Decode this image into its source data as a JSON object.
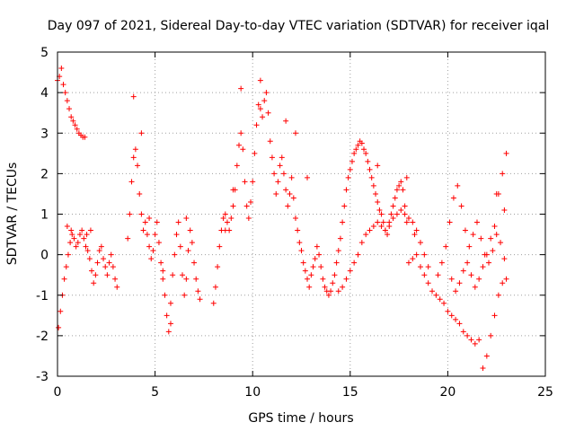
{
  "chart_data": {
    "type": "scatter",
    "title": "Day 097 of 2021, Sidereal Day-to-day VTEC variation (SDTVAR) for receiver iqal",
    "xlabel": "GPS time / hours",
    "ylabel": "SDTVAR / TECUs",
    "xlim": [
      0,
      25
    ],
    "ylim": [
      -3,
      5
    ],
    "x_ticks": [
      0,
      5,
      10,
      15,
      20,
      25
    ],
    "y_ticks": [
      -3,
      -2,
      -1,
      0,
      1,
      2,
      3,
      4,
      5
    ],
    "grid": true,
    "marker": "plus",
    "color": "#ff0000",
    "series": [
      {
        "name": "SDTVAR",
        "x": [
          0.0,
          0.1,
          0.2,
          0.3,
          0.4,
          0.5,
          0.6,
          0.7,
          0.8,
          0.9,
          1.0,
          1.1,
          1.2,
          1.3,
          1.4,
          0.05,
          0.15,
          0.25,
          0.35,
          0.45,
          0.55,
          0.65,
          0.75,
          0.85,
          0.95,
          1.05,
          1.15,
          1.25,
          1.35,
          1.45,
          1.55,
          1.65,
          1.75,
          1.85,
          1.95,
          2.05,
          2.15,
          2.25,
          2.35,
          2.45,
          2.55,
          2.65,
          2.75,
          2.85,
          2.95,
          3.05,
          3.6,
          3.7,
          3.8,
          3.9,
          4.0,
          4.1,
          4.2,
          4.3,
          4.4,
          4.5,
          4.6,
          4.7,
          4.8,
          4.9,
          5.0,
          5.1,
          5.2,
          5.3,
          5.4,
          5.5,
          5.6,
          5.7,
          5.8,
          5.9,
          6.0,
          6.1,
          6.2,
          6.3,
          6.4,
          6.5,
          6.6,
          6.7,
          6.8,
          6.9,
          7.0,
          7.1,
          7.2,
          7.3,
          8.0,
          8.1,
          8.2,
          8.3,
          8.4,
          8.5,
          8.6,
          8.7,
          8.8,
          8.9,
          9.0,
          9.1,
          9.2,
          9.3,
          9.4,
          9.5,
          9.6,
          9.7,
          9.8,
          9.9,
          10.0,
          10.1,
          10.2,
          10.3,
          10.4,
          10.5,
          10.6,
          10.7,
          10.8,
          10.9,
          11.0,
          11.1,
          11.2,
          11.3,
          11.4,
          11.5,
          11.6,
          11.7,
          11.8,
          11.9,
          12.0,
          12.1,
          12.2,
          12.3,
          12.4,
          12.5,
          12.6,
          12.7,
          12.8,
          12.9,
          13.0,
          13.1,
          13.2,
          13.3,
          13.4,
          13.5,
          13.6,
          13.7,
          13.8,
          13.9,
          14.0,
          14.1,
          14.2,
          14.3,
          14.4,
          14.5,
          14.6,
          14.7,
          14.8,
          14.9,
          15.0,
          15.1,
          15.2,
          15.3,
          15.4,
          15.5,
          15.6,
          15.7,
          15.8,
          15.9,
          16.0,
          16.1,
          16.2,
          16.3,
          16.4,
          16.5,
          16.6,
          16.7,
          16.8,
          16.9,
          17.0,
          17.1,
          17.2,
          17.3,
          17.4,
          17.5,
          17.6,
          17.7,
          17.8,
          17.9,
          14.4,
          14.6,
          14.8,
          15.0,
          15.2,
          15.4,
          15.6,
          15.8,
          16.0,
          16.2,
          16.4,
          16.6,
          16.8,
          17.0,
          17.2,
          17.4,
          17.6,
          17.8,
          18.0,
          18.2,
          18.4,
          18.6,
          18.8,
          19.0,
          18.0,
          18.2,
          18.4,
          18.6,
          18.8,
          19.0,
          19.2,
          19.4,
          19.6,
          19.8,
          20.0,
          20.2,
          20.4,
          20.6,
          20.8,
          21.0,
          21.2,
          21.4,
          21.6,
          21.8,
          22.0,
          22.2,
          22.4,
          22.6,
          22.8,
          23.0,
          19.5,
          19.7,
          19.9,
          20.1,
          20.3,
          20.5,
          20.7,
          20.9,
          21.1,
          21.3,
          21.5,
          21.7,
          21.9,
          22.1,
          22.3,
          22.5,
          22.7,
          22.9,
          20.2,
          20.4,
          20.6,
          20.8,
          21.0,
          21.2,
          21.4,
          21.6,
          21.8,
          22.0,
          22.2,
          22.4,
          22.6,
          22.8,
          23.0,
          0.5,
          0.7,
          1.5,
          1.7,
          3.9,
          4.3,
          4.7,
          5.4,
          5.8,
          6.6,
          8.6,
          9.0,
          9.4,
          10.4,
          11.7,
          12.2,
          12.8,
          16.4,
          17.9,
          18.3,
          22.5,
          22.9
        ],
        "y": [
          4.3,
          4.4,
          4.6,
          4.2,
          4.0,
          3.8,
          3.6,
          3.4,
          3.3,
          3.2,
          3.1,
          3.0,
          2.95,
          2.9,
          2.9,
          -1.8,
          -1.4,
          -1.0,
          -0.6,
          -0.3,
          0.0,
          0.3,
          0.5,
          0.4,
          0.2,
          0.3,
          0.5,
          0.6,
          0.4,
          0.2,
          0.1,
          -0.1,
          -0.4,
          -0.7,
          -0.5,
          -0.2,
          0.1,
          0.2,
          -0.1,
          -0.3,
          -0.5,
          -0.2,
          0.0,
          -0.3,
          -0.6,
          -0.8,
          0.4,
          1.0,
          1.8,
          2.4,
          2.6,
          2.2,
          1.5,
          1.0,
          0.6,
          0.8,
          0.5,
          0.2,
          -0.1,
          0.1,
          0.5,
          0.8,
          0.3,
          -0.2,
          -0.6,
          -1.0,
          -1.5,
          -1.9,
          -1.2,
          -0.5,
          0.0,
          0.5,
          0.8,
          0.2,
          -0.5,
          -1.0,
          -0.6,
          0.1,
          0.6,
          0.3,
          -0.2,
          -0.6,
          -0.9,
          -1.1,
          -1.2,
          -0.8,
          -0.3,
          0.2,
          0.6,
          0.9,
          1.0,
          0.8,
          0.6,
          0.9,
          1.2,
          1.6,
          2.2,
          2.7,
          3.0,
          2.6,
          1.8,
          1.2,
          0.9,
          1.3,
          1.8,
          2.5,
          3.2,
          3.7,
          3.6,
          3.4,
          3.8,
          4.0,
          3.5,
          2.8,
          2.4,
          2.0,
          1.5,
          1.8,
          2.2,
          2.4,
          2.0,
          1.6,
          1.2,
          1.5,
          1.9,
          1.4,
          0.9,
          0.6,
          0.3,
          0.1,
          -0.2,
          -0.4,
          -0.6,
          -0.8,
          -0.5,
          -0.3,
          -0.1,
          0.2,
          0.0,
          -0.3,
          -0.6,
          -0.8,
          -0.9,
          -1.0,
          -0.9,
          -0.7,
          -0.5,
          -0.2,
          0.1,
          0.4,
          0.8,
          1.2,
          1.6,
          1.9,
          2.1,
          2.3,
          2.5,
          2.6,
          2.7,
          2.8,
          2.75,
          2.6,
          2.5,
          2.3,
          2.1,
          1.9,
          1.7,
          1.5,
          1.3,
          1.1,
          1.0,
          0.8,
          0.6,
          0.5,
          0.8,
          1.0,
          1.2,
          1.4,
          1.6,
          1.7,
          1.8,
          1.6,
          1.2,
          0.8,
          -0.9,
          -0.8,
          -0.6,
          -0.4,
          -0.2,
          0.0,
          0.3,
          0.5,
          0.6,
          0.7,
          0.8,
          0.7,
          0.6,
          0.7,
          0.9,
          1.0,
          1.1,
          1.0,
          0.9,
          0.8,
          0.6,
          0.3,
          0.0,
          -0.3,
          -0.2,
          -0.1,
          0.0,
          -0.3,
          -0.5,
          -0.7,
          -0.9,
          -1.0,
          -1.1,
          -1.2,
          -1.4,
          -1.5,
          -1.6,
          -1.7,
          -1.9,
          -2.0,
          -2.1,
          -2.2,
          -2.1,
          -2.8,
          -2.5,
          -2.0,
          -1.5,
          -1.0,
          -0.7,
          -0.6,
          -0.5,
          -0.2,
          0.2,
          0.8,
          1.4,
          1.7,
          1.2,
          0.6,
          0.2,
          0.5,
          0.8,
          0.4,
          0.0,
          -0.2,
          0.1,
          0.5,
          0.3,
          -0.1,
          -0.6,
          -0.9,
          -0.7,
          -0.4,
          -0.2,
          -0.5,
          -0.8,
          -0.6,
          -0.3,
          0.0,
          0.4,
          0.7,
          1.5,
          2.0,
          2.5,
          0.7,
          0.6,
          0.5,
          0.6,
          3.9,
          3.0,
          0.9,
          -0.4,
          -1.7,
          0.9,
          0.6,
          1.6,
          4.1,
          4.3,
          3.3,
          3.0,
          1.9,
          2.2,
          1.9,
          0.5,
          1.5,
          1.1
        ]
      }
    ]
  }
}
